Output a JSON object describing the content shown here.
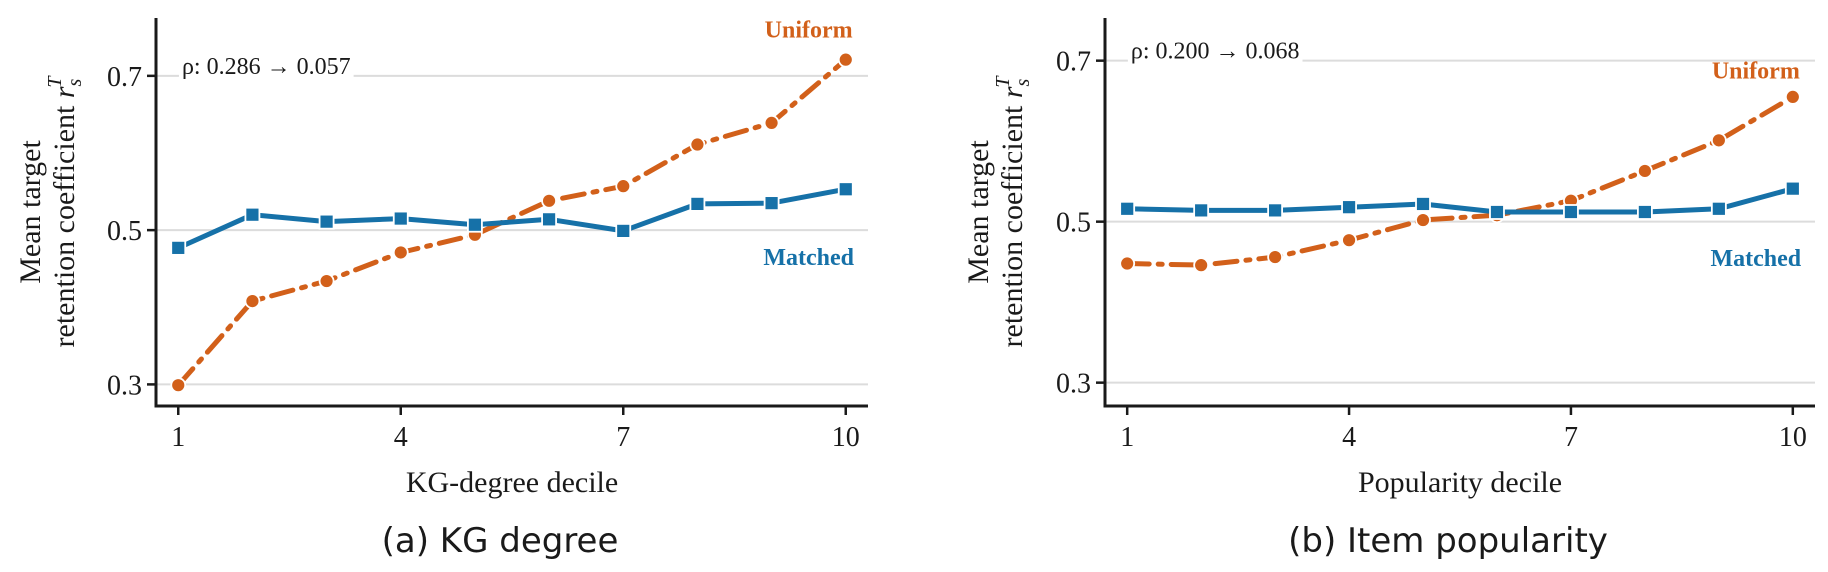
{
  "colors": {
    "uniform": "#d2601a",
    "matched": "#1671a8",
    "grid": "#dcdcdc",
    "axis": "#1a1a1a"
  },
  "chart_data": [
    {
      "type": "line",
      "caption": "(a) KG degree",
      "xlabel": "KG-degree decile",
      "ylabel_line1": "Mean target",
      "ylabel_line2": "retention coefficient",
      "ylabel_symbol": "r",
      "ylabel_sub": "s",
      "ylabel_sup": "T",
      "annotation": "ρ: 0.286 → 0.057",
      "x": [
        1,
        2,
        3,
        4,
        5,
        6,
        7,
        8,
        9,
        10
      ],
      "xticks": [
        1,
        4,
        7,
        10
      ],
      "xtick_labels": [
        "1",
        "4",
        "7",
        "10"
      ],
      "yticks": [
        0.3,
        0.5,
        0.7
      ],
      "ytick_labels": [
        "0.3",
        "0.5",
        "0.7"
      ],
      "xlim": [
        0.7,
        10.3
      ],
      "ylim": [
        0.272,
        0.775
      ],
      "grid": "horizontal",
      "series": [
        {
          "name": "Uniform",
          "key": "uniform",
          "style": "dashdot",
          "marker": "circle",
          "values": [
            0.299,
            0.408,
            0.434,
            0.471,
            0.494,
            0.538,
            0.557,
            0.611,
            0.639,
            0.721
          ]
        },
        {
          "name": "Matched",
          "key": "matched",
          "style": "solid",
          "marker": "square",
          "values": [
            0.477,
            0.52,
            0.511,
            0.515,
            0.507,
            0.514,
            0.499,
            0.534,
            0.535,
            0.553
          ]
        }
      ],
      "series_label_pos": {
        "uniform": [
          9.5,
          0.75
        ],
        "matched": [
          9.5,
          0.455
        ]
      }
    },
    {
      "type": "line",
      "caption": "(b) Item popularity",
      "xlabel": "Popularity decile",
      "ylabel_line1": "Mean target",
      "ylabel_line2": "retention coefficient",
      "ylabel_symbol": "r",
      "ylabel_sub": "s",
      "ylabel_sup": "T",
      "annotation": "ρ: 0.200 → 0.068",
      "x": [
        1,
        2,
        3,
        4,
        5,
        6,
        7,
        8,
        9,
        10
      ],
      "xticks": [
        1,
        4,
        7,
        10
      ],
      "xtick_labels": [
        "1",
        "4",
        "7",
        "10"
      ],
      "yticks": [
        0.3,
        0.5,
        0.7
      ],
      "ytick_labels": [
        "0.3",
        "0.5",
        "0.7"
      ],
      "xlim": [
        0.7,
        10.3
      ],
      "ylim": [
        0.271,
        0.753
      ],
      "grid": "horizontal",
      "series": [
        {
          "name": "Uniform",
          "key": "uniform",
          "style": "dashdot",
          "marker": "circle",
          "values": [
            0.448,
            0.446,
            0.456,
            0.477,
            0.502,
            0.508,
            0.526,
            0.563,
            0.601,
            0.655
          ]
        },
        {
          "name": "Matched",
          "key": "matched",
          "style": "solid",
          "marker": "square",
          "values": [
            0.516,
            0.514,
            0.514,
            0.518,
            0.522,
            0.512,
            0.512,
            0.512,
            0.516,
            0.541
          ]
        }
      ],
      "series_label_pos": {
        "uniform": [
          9.5,
          0.678
        ],
        "matched": [
          9.5,
          0.445
        ]
      }
    }
  ]
}
